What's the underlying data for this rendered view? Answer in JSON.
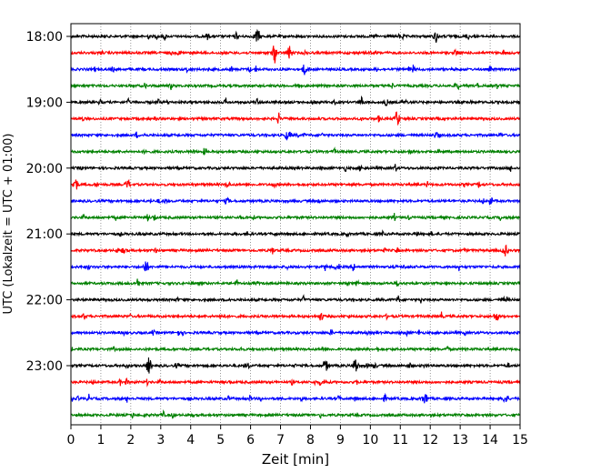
{
  "chart_data": {
    "type": "line",
    "xlabel": "Zeit  [min]",
    "ylabel": "UTC (Lokalzeit = UTC + 01:00)",
    "xlim": [
      0,
      15
    ],
    "x_ticks": [
      "0",
      "1",
      "2",
      "3",
      "4",
      "5",
      "6",
      "7",
      "8",
      "9",
      "10",
      "11",
      "12",
      "13",
      "14",
      "15"
    ],
    "y_tick_labels": [
      "18:00",
      "19:00",
      "20:00",
      "21:00",
      "22:00",
      "23:00"
    ],
    "grid": "vertical dotted",
    "trace_minutes": 15,
    "trace_count": 24,
    "trace_colors": [
      "#000000",
      "#ff0000",
      "#0000ff",
      "#008000"
    ],
    "events": [
      {
        "trace": 0,
        "x": 6.2,
        "amp": 0.9
      },
      {
        "trace": 0,
        "x": 12.2,
        "amp": 0.8
      },
      {
        "trace": 1,
        "x": 6.8,
        "amp": 1.0
      },
      {
        "trace": 1,
        "x": 7.3,
        "amp": 0.9
      },
      {
        "trace": 2,
        "x": 7.8,
        "amp": 0.7
      },
      {
        "trace": 4,
        "x": 9.7,
        "amp": 0.6
      },
      {
        "trace": 5,
        "x": 10.9,
        "amp": 1.1
      },
      {
        "trace": 9,
        "x": 0.15,
        "amp": 1.0
      },
      {
        "trace": 9,
        "x": 1.9,
        "amp": 0.6
      },
      {
        "trace": 13,
        "x": 14.5,
        "amp": 0.8
      },
      {
        "trace": 14,
        "x": 2.5,
        "amp": 0.9
      },
      {
        "trace": 17,
        "x": 14.2,
        "amp": 0.6
      },
      {
        "trace": 20,
        "x": 2.6,
        "amp": 1.1
      },
      {
        "trace": 20,
        "x": 8.5,
        "amp": 0.8
      },
      {
        "trace": 20,
        "x": 9.5,
        "amp": 1.2
      },
      {
        "trace": 22,
        "x": 11.8,
        "amp": 0.6
      },
      {
        "trace": 22,
        "x": 14.5,
        "amp": 0.6
      }
    ]
  }
}
